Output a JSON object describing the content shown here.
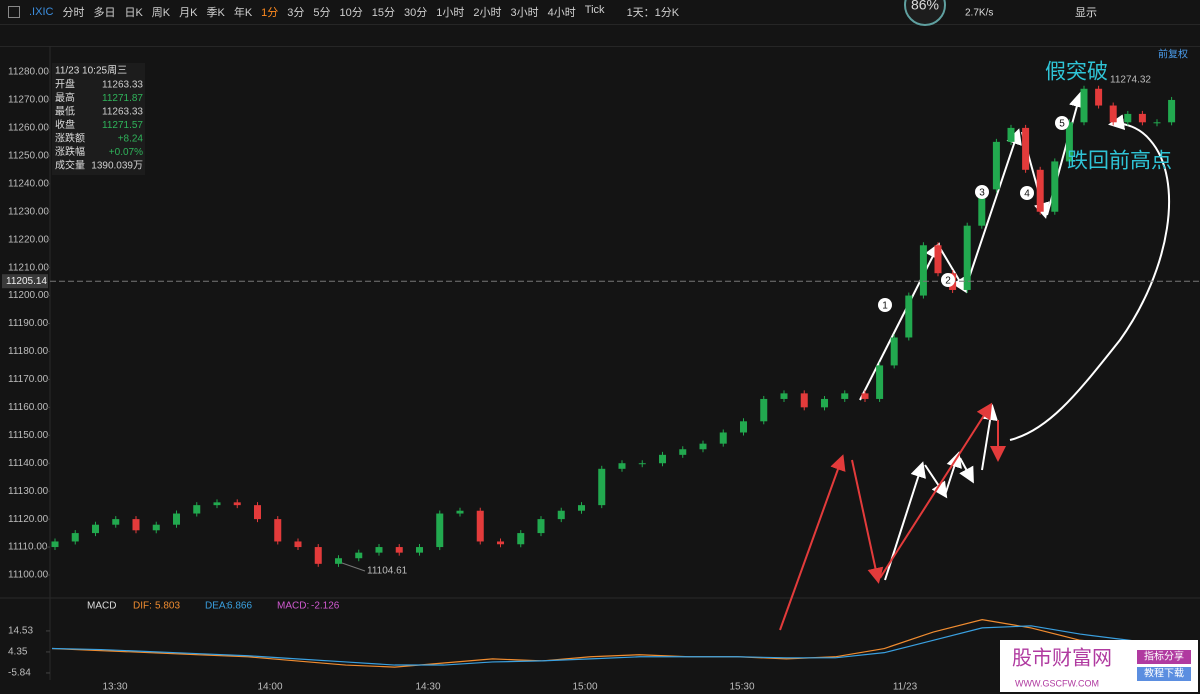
{
  "toolbar": {
    "symbol": ".IXIC",
    "tabs": [
      "分时",
      "多日",
      "日K",
      "周K",
      "月K",
      "季K",
      "年K",
      "1分",
      "3分",
      "5分",
      "10分",
      "15分",
      "30分",
      "1小时",
      "2小时",
      "3小时",
      "4小时",
      "Tick"
    ],
    "active_tab": 7,
    "period": "1天：1分K",
    "badge": "86%",
    "speed": "2.7K/s",
    "display": "显示"
  },
  "adjust": "前复权",
  "info": {
    "datetime": "11/23 10:25周三",
    "rows": [
      {
        "label": "开盘",
        "value": "11263.33",
        "color": "#cfcfcf"
      },
      {
        "label": "最高",
        "value": "11271.87",
        "color": "#2fb35a"
      },
      {
        "label": "最低",
        "value": "11263.33",
        "color": "#cfcfcf"
      },
      {
        "label": "收盘",
        "value": "11271.57",
        "color": "#2fb35a"
      },
      {
        "label": "涨跌额",
        "value": "+8.24",
        "color": "#2fb35a"
      },
      {
        "label": "涨跌幅",
        "value": "+0.07%",
        "color": "#2fb35a"
      },
      {
        "label": "成交量",
        "value": "1390.039万",
        "color": "#cfcfcf"
      }
    ]
  },
  "chart_data": {
    "type": "candlestick",
    "open": [
      11110,
      11112,
      11115,
      11118,
      11120,
      11116,
      11118,
      11122,
      11125,
      11126,
      11125,
      11120,
      11112,
      11110,
      11104,
      11106,
      11108,
      11110,
      11108,
      11110,
      11122,
      11123,
      11112,
      11111,
      11115,
      11120,
      11123,
      11125,
      11138,
      11140,
      11140,
      11143,
      11145,
      11147,
      11151,
      11155,
      11163,
      11165,
      11160,
      11163,
      11165,
      11163,
      11175,
      11185,
      11200,
      11218,
      11208,
      11202,
      11225,
      11238,
      11255,
      11260,
      11245,
      11230,
      11248,
      11262,
      11274,
      11268,
      11262,
      11265,
      11262,
      11262
    ],
    "close": [
      11112,
      11115,
      11118,
      11120,
      11116,
      11118,
      11122,
      11125,
      11126,
      11125,
      11120,
      11112,
      11110,
      11104,
      11106,
      11108,
      11110,
      11108,
      11110,
      11122,
      11123,
      11112,
      11111,
      11115,
      11120,
      11123,
      11125,
      11138,
      11140,
      11140,
      11143,
      11145,
      11147,
      11151,
      11155,
      11163,
      11165,
      11160,
      11163,
      11165,
      11163,
      11175,
      11185,
      11200,
      11218,
      11208,
      11202,
      11225,
      11238,
      11255,
      11260,
      11245,
      11230,
      11248,
      11262,
      11274,
      11268,
      11262,
      11265,
      11262,
      11262,
      11270
    ],
    "up_color": "#22a94f",
    "down_color": "#e33b3b",
    "ylim": [
      11100,
      11280
    ],
    "yticks": [
      {
        "value": 11280,
        "label": "11280.00"
      },
      {
        "value": 11270,
        "label": "11270.00"
      },
      {
        "value": 11260,
        "label": "11260.00"
      },
      {
        "value": 11250,
        "label": "11250.00"
      },
      {
        "value": 11240,
        "label": "11240.00"
      },
      {
        "value": 11230,
        "label": "11230.00"
      },
      {
        "value": 11220,
        "label": "11220.00"
      },
      {
        "value": 11210,
        "label": "11210.00"
      },
      {
        "value": 11200,
        "label": "11200.00"
      },
      {
        "value": 11190,
        "label": "11190.00"
      },
      {
        "value": 11180,
        "label": "11180.00"
      },
      {
        "value": 11170,
        "label": "11170.00"
      },
      {
        "value": 11160,
        "label": "11160.00"
      },
      {
        "value": 11150,
        "label": "11150.00"
      },
      {
        "value": 11140,
        "label": "11140.00"
      },
      {
        "value": 11130,
        "label": "11130.00"
      },
      {
        "value": 11120,
        "label": "11120.00"
      },
      {
        "value": 11110,
        "label": "11110.00"
      },
      {
        "value": 11100,
        "label": "11100.00"
      }
    ],
    "current_price": 11205.14,
    "high_label": "11274.32",
    "low_label": "11104.61",
    "x_labels": [
      "13:30",
      "14:00",
      "14:30",
      "15:00",
      "15:30",
      "11/23"
    ],
    "annotations": [
      "假突破",
      "跌回前高点"
    ],
    "wave_labels": [
      "1",
      "2",
      "3",
      "4",
      "5"
    ]
  },
  "macd": {
    "type": "line",
    "title": "MACD",
    "legend": [
      {
        "label": "DIF:",
        "value": "5.803",
        "color": "#f08c30"
      },
      {
        "label": "DEA:",
        "value": "6.866",
        "color": "#3aa0e0"
      },
      {
        "label": "MACD:",
        "value": "-2.126",
        "color": "#d05ad0"
      }
    ],
    "series": [
      {
        "name": "DIF",
        "color": "#f08c30",
        "values": [
          6,
          5,
          4,
          3,
          2,
          0,
          -2,
          -3,
          -1,
          1,
          0,
          2,
          3,
          2,
          2,
          1,
          2,
          6,
          14,
          20,
          16,
          10,
          8,
          6
        ]
      },
      {
        "name": "DEA",
        "color": "#3aa0e0",
        "values": [
          6,
          5.5,
          4.5,
          3.5,
          2.5,
          1,
          -0.5,
          -2,
          -2,
          -0.5,
          0,
          1,
          2,
          2,
          2,
          1.5,
          1.5,
          4,
          10,
          16,
          17,
          13,
          10,
          7
        ]
      }
    ],
    "ylim": [
      -14.1,
      20.8
    ],
    "yticks": [
      14.53,
      4.35,
      -5.84
    ]
  },
  "watermark": {
    "name": "股市财富网",
    "tag1": "指标分享",
    "tag2": "教程下载",
    "url": "WWW.GSCFW.COM"
  }
}
